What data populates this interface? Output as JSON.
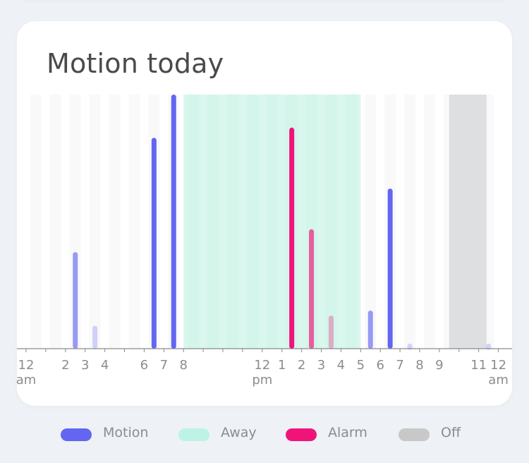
{
  "card": {
    "title": "Motion today"
  },
  "chart_data": {
    "type": "bar",
    "title": "Motion today",
    "x_unit": "hour of day",
    "xlim": [
      0,
      24
    ],
    "ylim": [
      0,
      100
    ],
    "series": [
      {
        "name": "Motion",
        "color": "#6366f1",
        "points": [
          {
            "hour": 2.5,
            "value": 38,
            "intensity": 0.65
          },
          {
            "hour": 3.5,
            "value": 9,
            "intensity": 0.28
          },
          {
            "hour": 6.5,
            "value": 83,
            "intensity": 1.0
          },
          {
            "hour": 7.5,
            "value": 100,
            "intensity": 1.0
          },
          {
            "hour": 17.5,
            "value": 15,
            "intensity": 0.65
          },
          {
            "hour": 18.5,
            "value": 63,
            "intensity": 1.0
          },
          {
            "hour": 19.5,
            "value": 2,
            "intensity": 0.25
          },
          {
            "hour": 23.5,
            "value": 2,
            "intensity": 0.25
          }
        ]
      },
      {
        "name": "Alarm",
        "color": "#f0147a",
        "points": [
          {
            "hour": 13.5,
            "value": 87,
            "intensity": 1.0
          },
          {
            "hour": 14.5,
            "value": 47,
            "intensity": 0.68
          },
          {
            "hour": 15.5,
            "value": 13,
            "intensity": 0.32
          }
        ]
      }
    ],
    "periods": [
      {
        "name": "Away",
        "color": "#d9f7ee",
        "start_hour": 8,
        "end_hour": 17
      },
      {
        "name": "Off",
        "color": "#dedfe1",
        "start_hour": 21.5,
        "end_hour": 23.4
      }
    ],
    "x_ticks": [
      {
        "hour": 0,
        "label": "12",
        "sub": "am"
      },
      {
        "hour": 2,
        "label": "2"
      },
      {
        "hour": 3,
        "label": "3"
      },
      {
        "hour": 4,
        "label": "4"
      },
      {
        "hour": 6,
        "label": "6"
      },
      {
        "hour": 7,
        "label": "7"
      },
      {
        "hour": 8,
        "label": "8"
      },
      {
        "hour": 12,
        "label": "12",
        "sub": "pm"
      },
      {
        "hour": 13,
        "label": "1"
      },
      {
        "hour": 14,
        "label": "2"
      },
      {
        "hour": 15,
        "label": "3"
      },
      {
        "hour": 16,
        "label": "4"
      },
      {
        "hour": 17,
        "label": "5"
      },
      {
        "hour": 18,
        "label": "6"
      },
      {
        "hour": 19,
        "label": "7"
      },
      {
        "hour": 20,
        "label": "8"
      },
      {
        "hour": 21,
        "label": "9"
      },
      {
        "hour": 23,
        "label": "11"
      },
      {
        "hour": 24,
        "label": "12",
        "sub": "am"
      }
    ]
  },
  "legend": {
    "items": [
      {
        "label": "Motion",
        "color": "#6366f1"
      },
      {
        "label": "Away",
        "color": "#bdf3e4"
      },
      {
        "label": "Alarm",
        "color": "#f0147a"
      },
      {
        "label": "Off",
        "color": "#c8c8c8"
      }
    ]
  }
}
